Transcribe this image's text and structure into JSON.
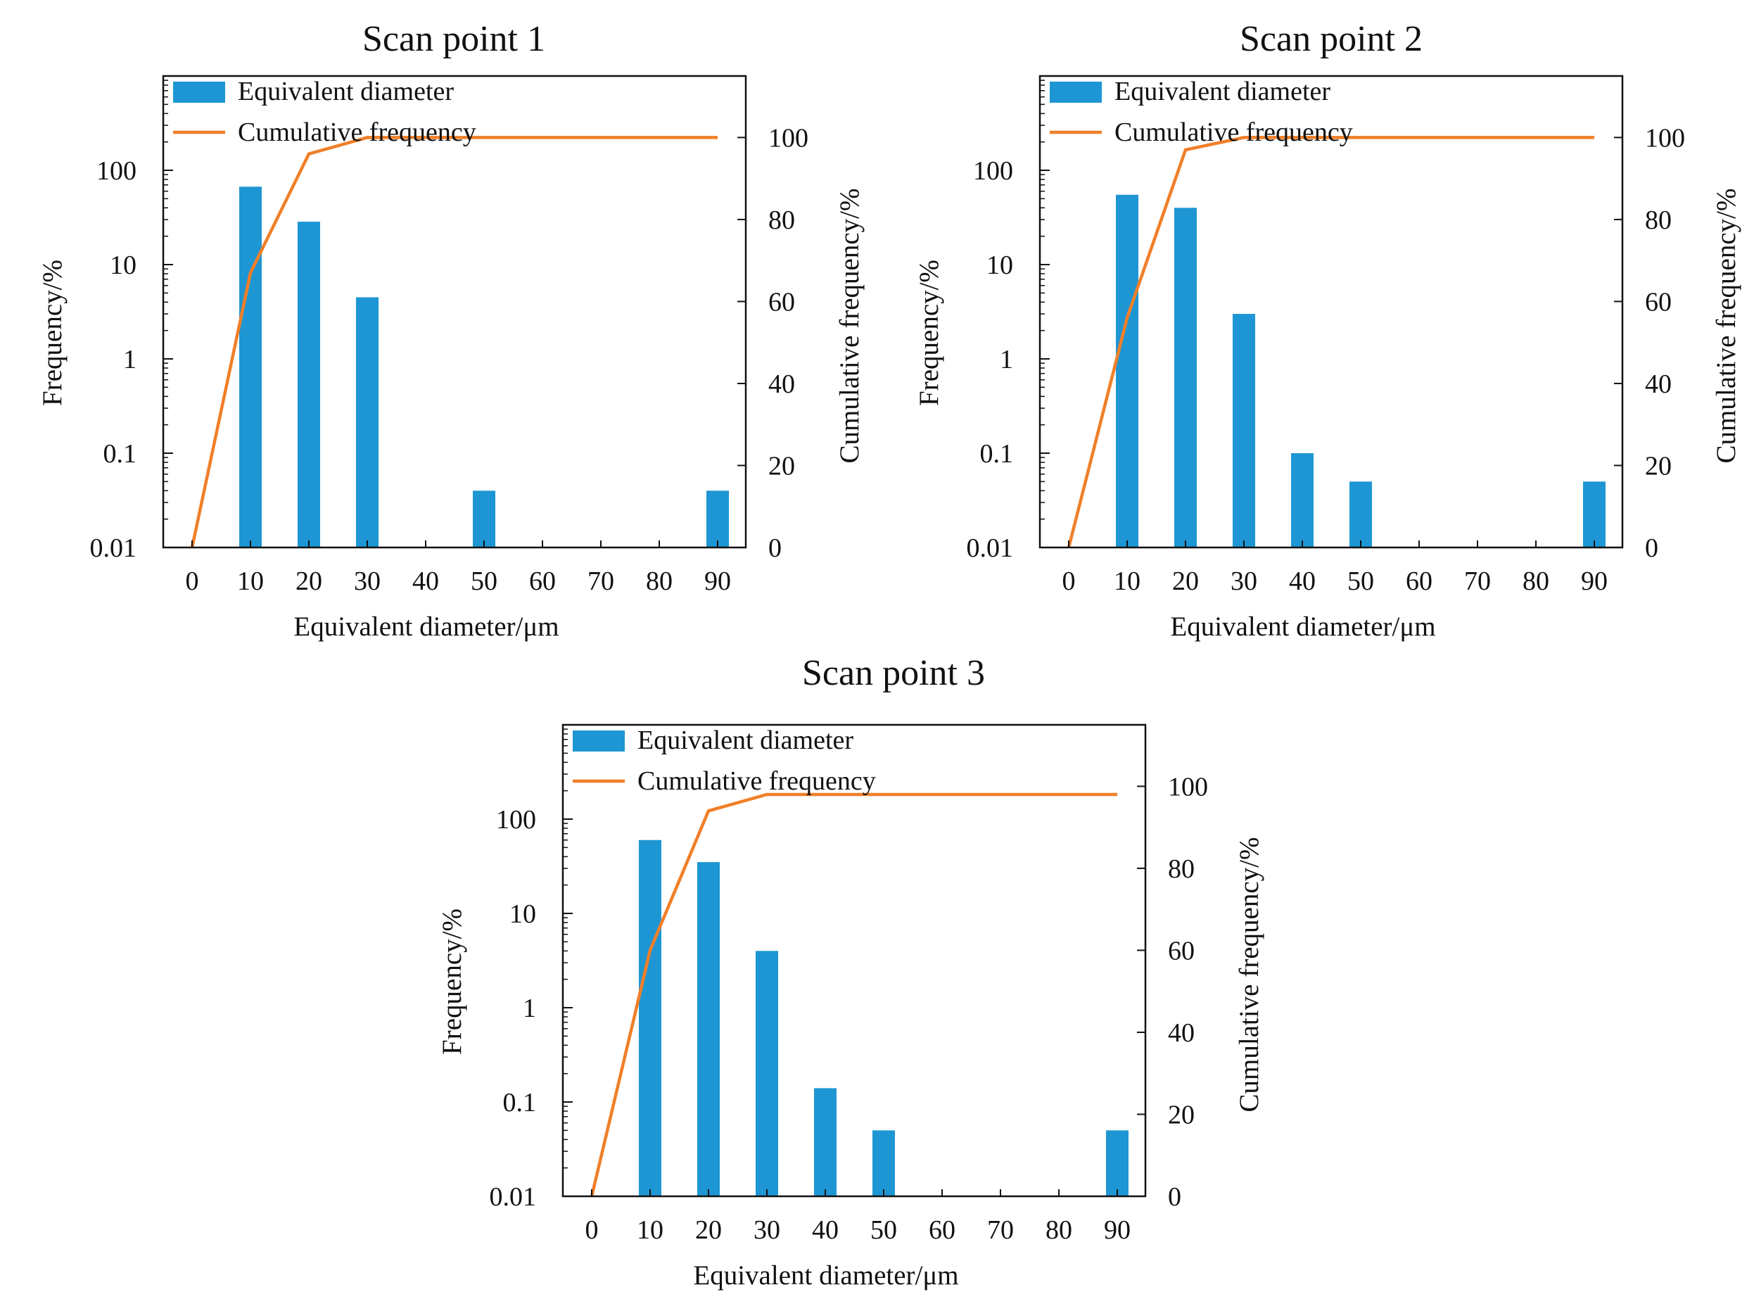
{
  "colors": {
    "bar": "#1e96d4",
    "line": "#f07f28",
    "axis": "#111111"
  },
  "chart_data": [
    {
      "type": "bar+line",
      "title": "Scan point 1",
      "xlabel": "Equivalent diameter/μm",
      "ylabel": "Frequency/%",
      "y2label": "Cumulative frequency/%",
      "x_ticks": [
        0,
        10,
        20,
        30,
        40,
        50,
        60,
        70,
        80,
        90
      ],
      "y_ticks": [
        "0.01",
        "0.1",
        "1",
        "10",
        "100"
      ],
      "y2_ticks": [
        0,
        20,
        40,
        60,
        80,
        100
      ],
      "ylim": [
        0.01,
        1000
      ],
      "y2lim": [
        0,
        115
      ],
      "legend": [
        "Equivalent diameter",
        "Cumulative frequency"
      ],
      "bars": {
        "name": "Equivalent diameter",
        "x": [
          10,
          20,
          30,
          50,
          90
        ],
        "values": [
          67,
          28.5,
          4.5,
          0.04,
          0.04
        ]
      },
      "line": {
        "name": "Cumulative frequency",
        "x": [
          0,
          10,
          20,
          30,
          90
        ],
        "values": [
          0,
          67,
          96,
          100,
          100
        ]
      }
    },
    {
      "type": "bar+line",
      "title": "Scan point 2",
      "xlabel": "Equivalent diameter/μm",
      "ylabel": "Frequency/%",
      "y2label": "Cumulative frequency/%",
      "x_ticks": [
        0,
        10,
        20,
        30,
        40,
        50,
        60,
        70,
        80,
        90
      ],
      "y_ticks": [
        "0.01",
        "0.1",
        "1",
        "10",
        "100"
      ],
      "y2_ticks": [
        0,
        20,
        40,
        60,
        80,
        100
      ],
      "ylim": [
        0.01,
        1000
      ],
      "y2lim": [
        0,
        115
      ],
      "legend": [
        "Equivalent diameter",
        "Cumulative frequency"
      ],
      "bars": {
        "name": "Equivalent diameter",
        "x": [
          10,
          20,
          30,
          40,
          50,
          90
        ],
        "values": [
          55,
          40,
          3,
          0.1,
          0.05,
          0.05
        ]
      },
      "line": {
        "name": "Cumulative frequency",
        "x": [
          0,
          10,
          20,
          30,
          40,
          90
        ],
        "values": [
          0,
          56,
          97,
          100,
          100,
          100
        ]
      }
    },
    {
      "type": "bar+line",
      "title": "Scan point 3",
      "xlabel": "Equivalent diameter/μm",
      "ylabel": "Frequency/%",
      "y2label": "Cumulative frequency/%",
      "x_ticks": [
        0,
        10,
        20,
        30,
        40,
        50,
        60,
        70,
        80,
        90
      ],
      "y_ticks": [
        "0.01",
        "0.1",
        "1",
        "10",
        "100"
      ],
      "y2_ticks": [
        0,
        20,
        40,
        60,
        80,
        100
      ],
      "ylim": [
        0.01,
        1000
      ],
      "y2lim": [
        0,
        115
      ],
      "legend": [
        "Equivalent diameter",
        "Cumulative frequency"
      ],
      "bars": {
        "name": "Equivalent diameter",
        "x": [
          10,
          20,
          30,
          40,
          50,
          90
        ],
        "values": [
          60,
          35,
          4,
          0.14,
          0.05,
          0.05
        ]
      },
      "line": {
        "name": "Cumulative frequency",
        "x": [
          0,
          10,
          20,
          30,
          40,
          90
        ],
        "values": [
          0,
          60,
          94,
          98,
          98,
          98
        ]
      }
    }
  ]
}
